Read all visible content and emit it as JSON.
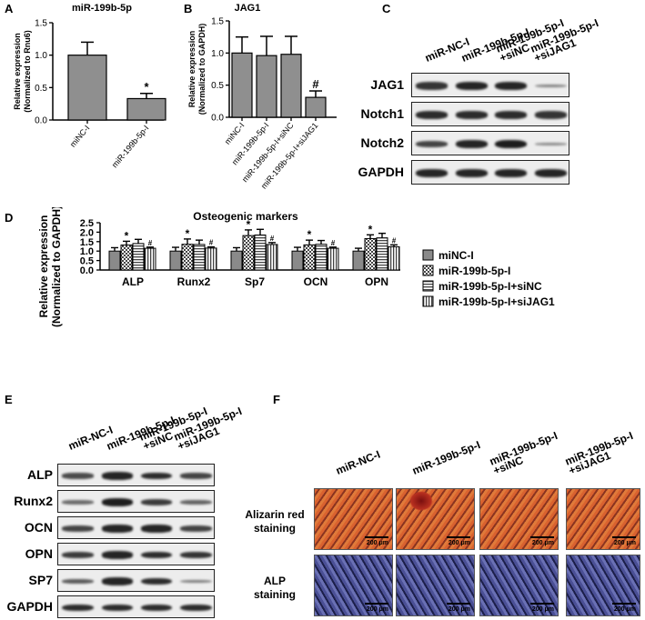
{
  "panels": {
    "A": "A",
    "B": "B",
    "C": "C",
    "D": "D",
    "E": "E",
    "F": "F"
  },
  "chart_data": [
    {
      "panel": "A",
      "type": "bar",
      "title": "miR-199b-5p",
      "ylabel_lines": [
        "Relative expression",
        "(Normalized to Rnu6)"
      ],
      "categories": [
        "miNC-I",
        "miR-199b-5p-I"
      ],
      "values": [
        1.0,
        0.33
      ],
      "errors": [
        0.2,
        0.08
      ],
      "annotations": [
        "",
        "*"
      ],
      "ylim": [
        0,
        1.5
      ],
      "yticks": [
        "0.0",
        "0.5",
        "1.0",
        "1.5"
      ],
      "bar_color": "#8f8f8f"
    },
    {
      "panel": "B",
      "type": "bar",
      "title": "JAG1",
      "ylabel_lines": [
        "Relative expression",
        "(Normalized to GAPDH)"
      ],
      "categories": [
        "miNC-I",
        "miR-199b-5p-I",
        "miR-199b-5p-I+siNC",
        "miR-199b-5p-I+siJAG1"
      ],
      "values": [
        1.0,
        0.96,
        0.98,
        0.31
      ],
      "errors": [
        0.25,
        0.3,
        0.28,
        0.1
      ],
      "annotations": [
        "",
        "",
        "",
        "#"
      ],
      "ylim": [
        0,
        1.5
      ],
      "yticks": [
        "0.0",
        "0.5",
        "1.0",
        "1.5"
      ],
      "bar_color": "#8f8f8f"
    },
    {
      "panel": "D",
      "type": "bar",
      "title": "Osteogenic markers",
      "ylabel_lines": [
        "Relative expression",
        "(Normalized to GAPDH)"
      ],
      "categories": [
        "ALP",
        "Runx2",
        "Sp7",
        "OCN",
        "OPN"
      ],
      "ylim": [
        0,
        2.5
      ],
      "yticks": [
        "0.0",
        "0.5",
        "1.0",
        "1.5",
        "2.0",
        "2.5"
      ],
      "series": [
        {
          "name": "miNC-I",
          "values": [
            1.0,
            1.0,
            1.0,
            1.0,
            1.0
          ],
          "errors": [
            0.18,
            0.2,
            0.18,
            0.2,
            0.15
          ],
          "annotations": [
            "",
            "",
            "",
            "",
            ""
          ]
        },
        {
          "name": "miR-199b-5p-I",
          "values": [
            1.32,
            1.36,
            1.82,
            1.33,
            1.66
          ],
          "errors": [
            0.2,
            0.28,
            0.3,
            0.25,
            0.2
          ],
          "annotations": [
            "*",
            "*",
            "*",
            "*",
            "*"
          ]
        },
        {
          "name": "miR-199b-5p-I+siNC",
          "values": [
            1.4,
            1.35,
            1.85,
            1.36,
            1.7
          ],
          "errors": [
            0.22,
            0.23,
            0.3,
            0.2,
            0.24
          ],
          "annotations": [
            "",
            "",
            "",
            "",
            ""
          ]
        },
        {
          "name": "miR-199b-5p-I+siJAG1",
          "values": [
            1.15,
            1.16,
            1.35,
            1.15,
            1.23
          ],
          "errors": [
            0.06,
            0.06,
            0.1,
            0.06,
            0.1
          ],
          "annotations": [
            "#",
            "#",
            "#",
            "#",
            "#"
          ]
        }
      ],
      "legend_position": "right"
    }
  ],
  "blot_c": {
    "columns": [
      [
        "miR-NC-I"
      ],
      [
        "miR-199b-5p-I"
      ],
      [
        "miR-199b-5p-I",
        "+siNC"
      ],
      [
        "miR-199b-5p-I",
        "+siJAG1"
      ]
    ],
    "rows": [
      {
        "label": "JAG1",
        "intensity": [
          0.85,
          0.95,
          0.95,
          0.35
        ]
      },
      {
        "label": "Notch1",
        "intensity": [
          0.9,
          0.9,
          0.9,
          0.85
        ]
      },
      {
        "label": "Notch2",
        "intensity": [
          0.75,
          0.95,
          1.0,
          0.3
        ]
      },
      {
        "label": "GAPDH",
        "intensity": [
          0.95,
          0.95,
          0.95,
          0.95
        ]
      }
    ]
  },
  "blot_e": {
    "columns": [
      [
        "miR-NC-I"
      ],
      [
        "miR-199b-5p-I"
      ],
      [
        "miR-199b-5p-I",
        "+siNC"
      ],
      [
        "miR-199b-5p-I",
        "+siJAG1"
      ]
    ],
    "rows": [
      {
        "label": "ALP",
        "intensity": [
          0.7,
          0.95,
          0.9,
          0.75
        ]
      },
      {
        "label": "Runx2",
        "intensity": [
          0.5,
          1.0,
          0.8,
          0.55
        ]
      },
      {
        "label": "OCN",
        "intensity": [
          0.75,
          0.95,
          0.95,
          0.75
        ]
      },
      {
        "label": "OPN",
        "intensity": [
          0.8,
          0.95,
          0.9,
          0.85
        ]
      },
      {
        "label": "SP7",
        "intensity": [
          0.6,
          0.95,
          0.9,
          0.4
        ]
      },
      {
        "label": "GAPDH",
        "intensity": [
          0.9,
          0.9,
          0.9,
          0.9
        ]
      }
    ]
  },
  "staining": {
    "columns": [
      [
        "miR-NC-I"
      ],
      [
        "miR-199b-5p-I"
      ],
      [
        "miR-199b-5p-I",
        "+siNC"
      ],
      [
        "miR-199b-5p-I",
        "+siJAG1"
      ]
    ],
    "rows": [
      {
        "label_lines": [
          "Alizarin red",
          "staining"
        ],
        "color": "#c8462a",
        "scale": "200 μm"
      },
      {
        "label_lines": [
          "ALP",
          "staining"
        ],
        "color": "#3c3f7c",
        "scale": "200 μm"
      }
    ]
  }
}
